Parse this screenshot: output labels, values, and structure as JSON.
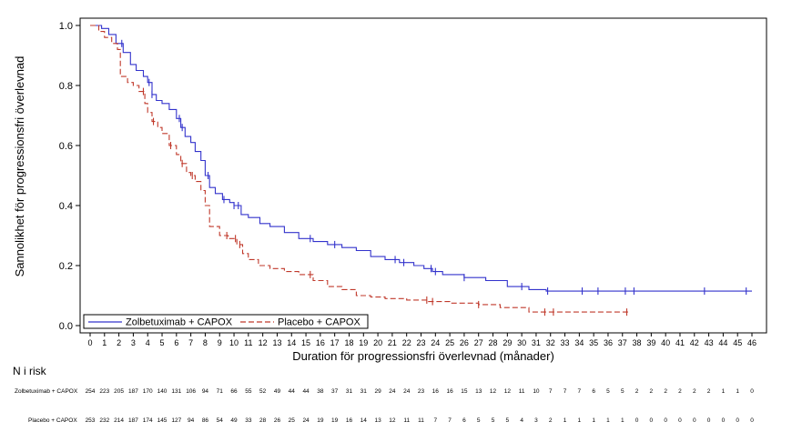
{
  "chart_data": {
    "type": "line",
    "subtype": "kaplan-meier-step",
    "title": "",
    "xlabel": "Duration för progressionsfri överlevnad (månader)",
    "ylabel": "Sannolikhet för progressionsfri överlevnad",
    "xlim": [
      0,
      46
    ],
    "ylim": [
      0,
      1.0
    ],
    "xticks": [
      0,
      1,
      2,
      3,
      4,
      5,
      6,
      7,
      8,
      9,
      10,
      11,
      12,
      13,
      14,
      15,
      16,
      17,
      18,
      19,
      20,
      21,
      22,
      23,
      24,
      25,
      26,
      27,
      28,
      29,
      30,
      31,
      32,
      33,
      34,
      35,
      36,
      37,
      38,
      39,
      40,
      41,
      42,
      43,
      44,
      45,
      46
    ],
    "yticks": [
      "0.0",
      "0.2",
      "0.4",
      "0.6",
      "0.8",
      "1.0"
    ],
    "grid": false,
    "legend_placement": "bottom-left",
    "series": [
      {
        "name": "Zolbetuximab + CAPOX",
        "color": "#3333cc",
        "line_style": "solid",
        "x": [
          0,
          0.8,
          1.3,
          1.8,
          2.3,
          2.8,
          3.2,
          3.7,
          4.0,
          4.3,
          4.6,
          5.0,
          5.5,
          6.0,
          6.3,
          6.6,
          7.0,
          7.3,
          7.7,
          8.0,
          8.3,
          8.7,
          9.2,
          9.7,
          10.0,
          10.5,
          11.0,
          11.8,
          12.5,
          13.5,
          14.5,
          15.5,
          16.5,
          17.5,
          18.5,
          19.5,
          20.5,
          21.5,
          22.5,
          23.2,
          23.8,
          24.5,
          26.0,
          27.5,
          29.0,
          30.5,
          31.7,
          33.0,
          46.0
        ],
        "y": [
          1.0,
          0.99,
          0.97,
          0.94,
          0.91,
          0.87,
          0.85,
          0.83,
          0.81,
          0.77,
          0.75,
          0.74,
          0.72,
          0.69,
          0.66,
          0.63,
          0.61,
          0.58,
          0.55,
          0.5,
          0.46,
          0.44,
          0.42,
          0.41,
          0.4,
          0.37,
          0.36,
          0.34,
          0.33,
          0.31,
          0.29,
          0.28,
          0.27,
          0.26,
          0.25,
          0.23,
          0.22,
          0.21,
          0.2,
          0.19,
          0.18,
          0.17,
          0.16,
          0.15,
          0.13,
          0.12,
          0.115,
          0.115,
          0.115
        ],
        "censor_x": [
          2.2,
          4.1,
          4.3,
          6.2,
          6.4,
          8.2,
          9.3,
          10.0,
          10.3,
          15.3,
          17.0,
          21.2,
          21.8,
          23.7,
          24.0,
          26.0,
          30.0,
          31.8,
          34.2,
          35.3,
          37.2,
          37.8,
          42.7,
          45.6
        ],
        "risk_counts": [
          254,
          223,
          205,
          187,
          170,
          140,
          131,
          106,
          94,
          71,
          66,
          55,
          52,
          49,
          44,
          44,
          38,
          37,
          31,
          31,
          29,
          24,
          24,
          23,
          16,
          16,
          15,
          13,
          12,
          12,
          11,
          10,
          7,
          7,
          7,
          6,
          5,
          5,
          2,
          2,
          2,
          2,
          2,
          2,
          1,
          1,
          0
        ]
      },
      {
        "name": "Placebo + CAPOX",
        "color": "#c0392b",
        "line_style": "dashed",
        "x": [
          0,
          0.6,
          1.0,
          1.5,
          1.9,
          2.1,
          2.6,
          3.0,
          3.4,
          3.8,
          4.0,
          4.3,
          4.7,
          5.0,
          5.5,
          6.0,
          6.3,
          6.7,
          7.0,
          7.3,
          7.7,
          8.0,
          8.3,
          9.0,
          9.6,
          10.2,
          10.6,
          11.0,
          11.7,
          12.5,
          13.5,
          14.5,
          15.5,
          16.5,
          17.5,
          18.5,
          19.5,
          20.5,
          22.0,
          23.5,
          25.0,
          27.0,
          28.5,
          30.5,
          37.5
        ],
        "y": [
          1.0,
          0.98,
          0.96,
          0.94,
          0.92,
          0.83,
          0.81,
          0.8,
          0.78,
          0.74,
          0.71,
          0.68,
          0.66,
          0.64,
          0.6,
          0.57,
          0.54,
          0.51,
          0.5,
          0.48,
          0.45,
          0.4,
          0.33,
          0.3,
          0.29,
          0.27,
          0.24,
          0.22,
          0.2,
          0.19,
          0.18,
          0.17,
          0.15,
          0.13,
          0.12,
          0.1,
          0.095,
          0.09,
          0.085,
          0.08,
          0.075,
          0.07,
          0.06,
          0.045,
          0.045
        ],
        "censor_x": [
          3.7,
          4.4,
          5.6,
          6.4,
          7.1,
          9.5,
          10.1,
          10.4,
          15.3,
          23.4,
          23.8,
          27.0,
          31.6,
          32.2,
          37.3
        ],
        "risk_counts": [
          253,
          232,
          214,
          187,
          174,
          145,
          127,
          94,
          86,
          54,
          49,
          33,
          28,
          26,
          25,
          24,
          19,
          19,
          16,
          14,
          13,
          12,
          11,
          11,
          7,
          7,
          6,
          5,
          5,
          5,
          4,
          3,
          2,
          1,
          1,
          1,
          1,
          1,
          0,
          0,
          0,
          0,
          0,
          0,
          0,
          0,
          0
        ]
      }
    ],
    "risk_table": {
      "title": "N i risk"
    }
  }
}
